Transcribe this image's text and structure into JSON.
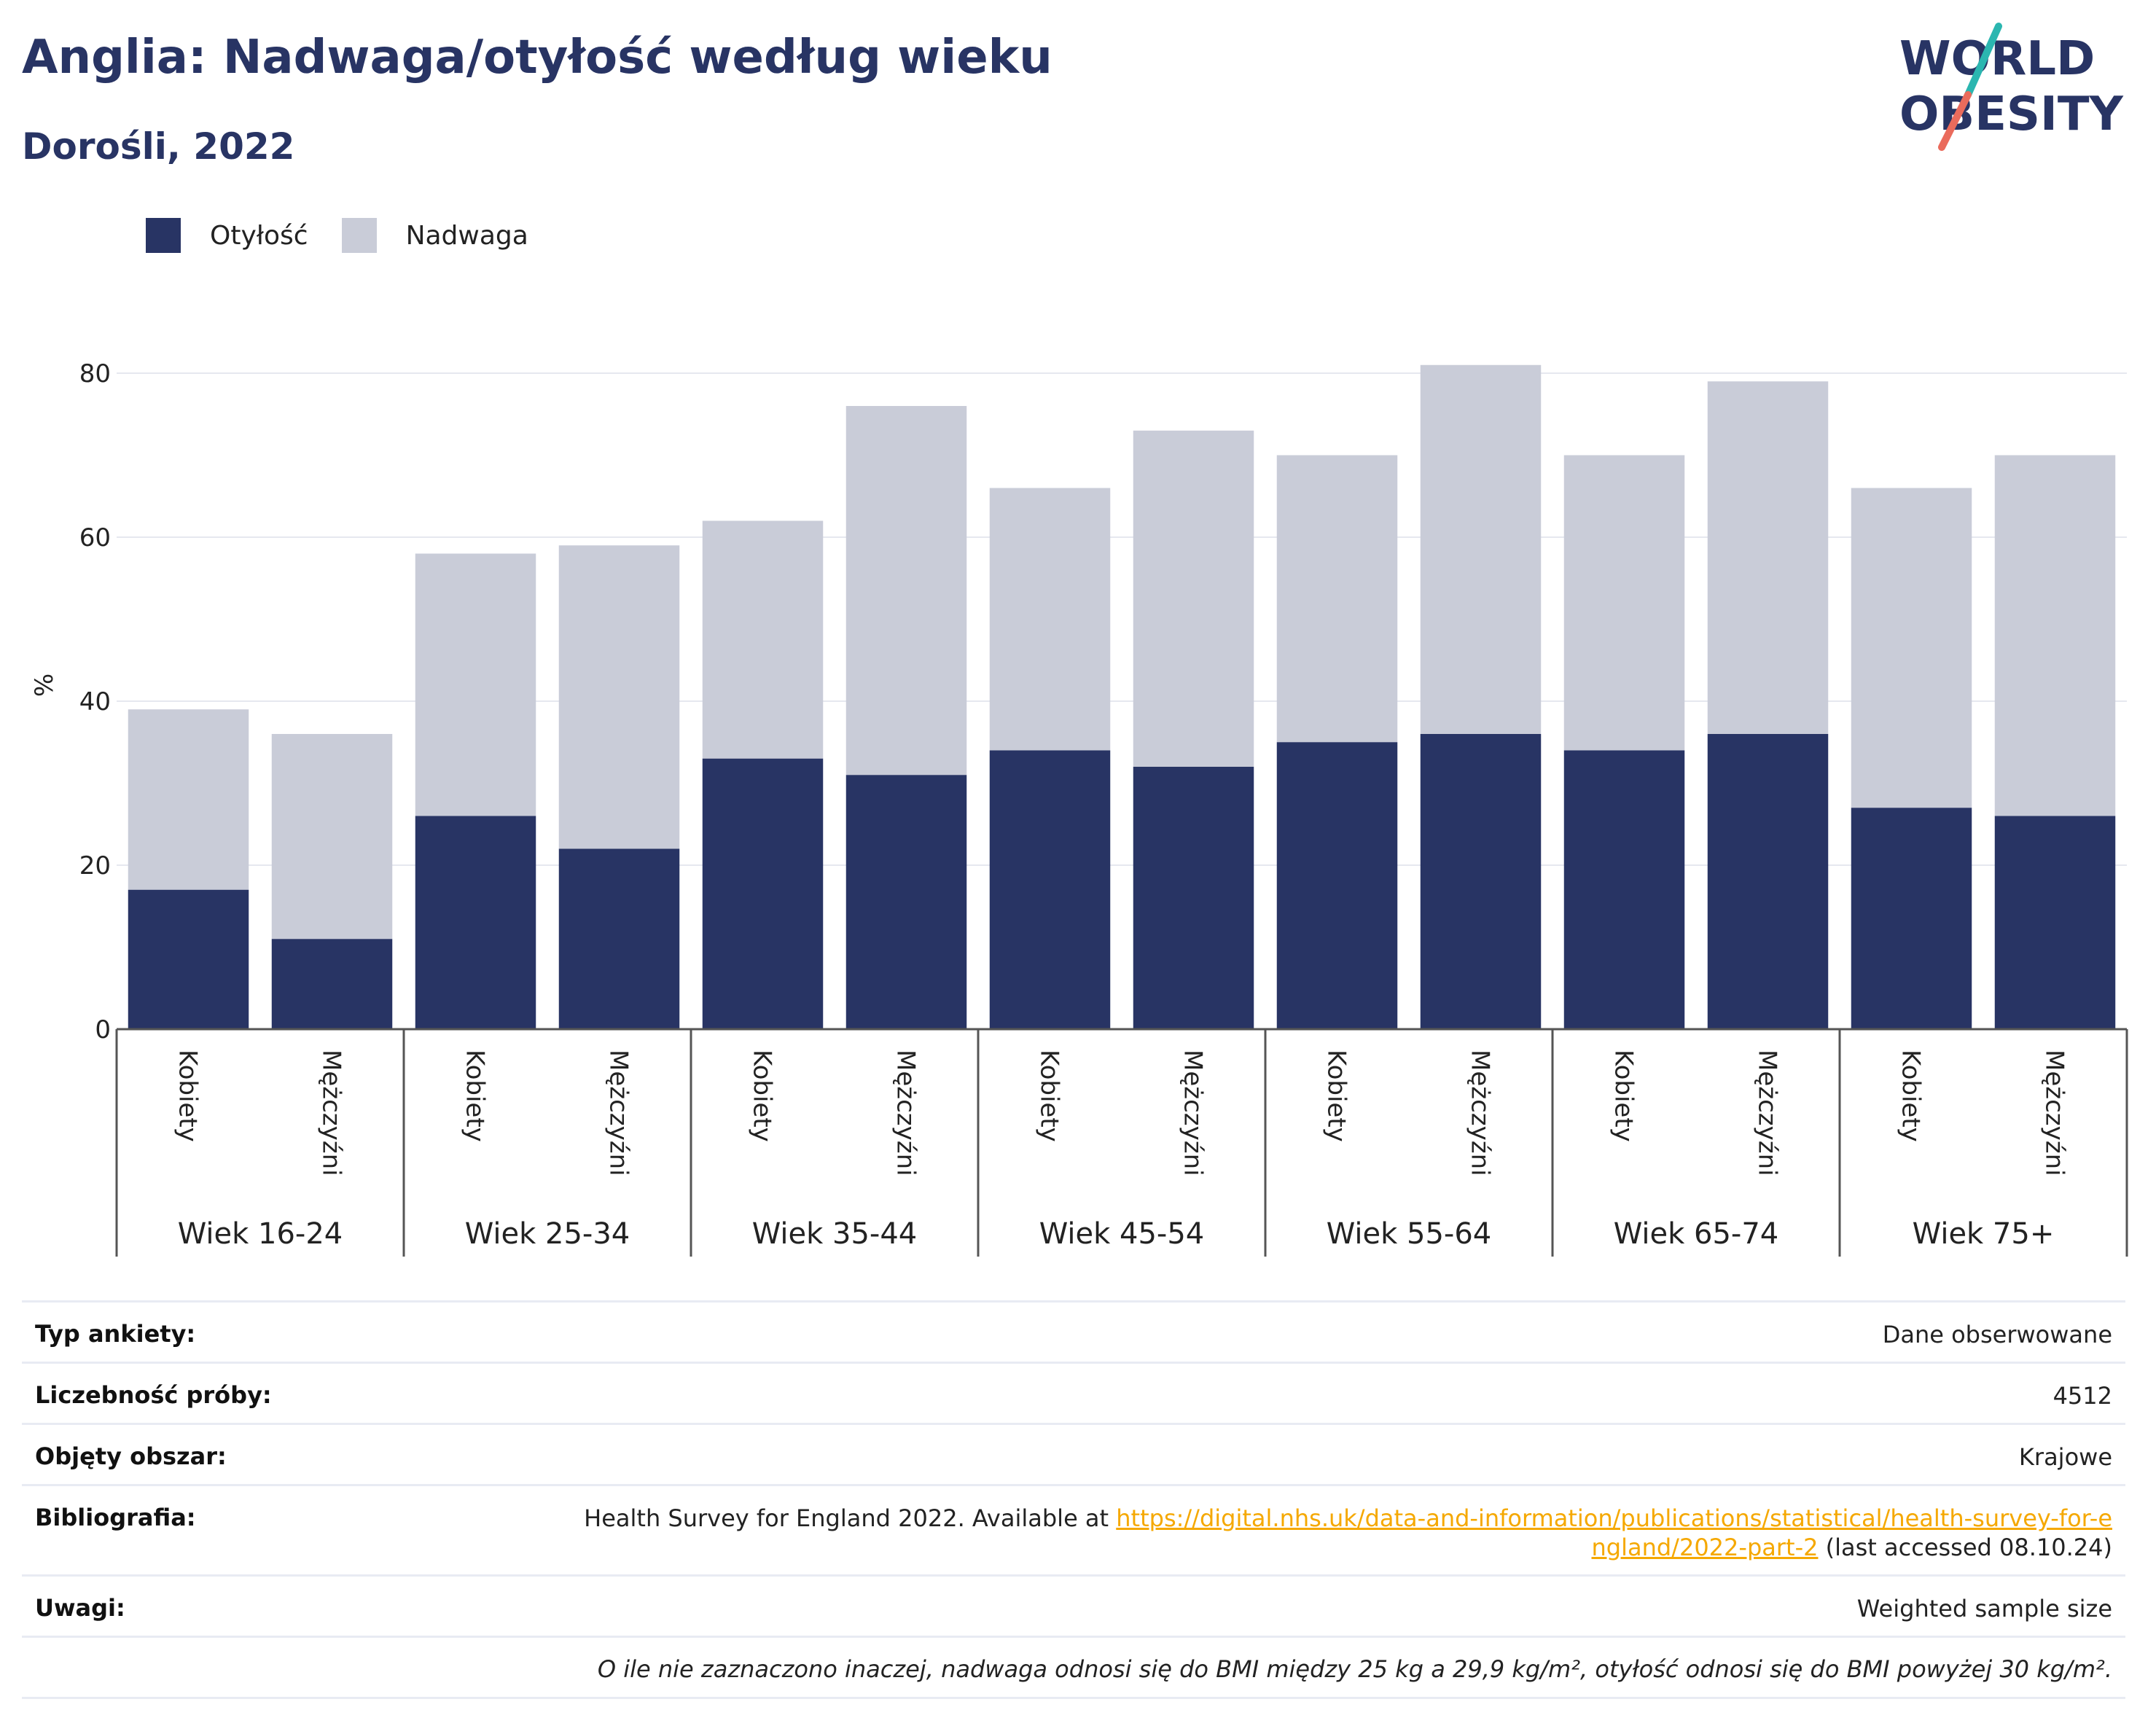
{
  "header": {
    "title": "Anglia: Nadwaga/otyłość według wieku",
    "subtitle": "Dorośli, 2022"
  },
  "logo": {
    "line1": "WORLD",
    "line2": "OBESITY",
    "colors": {
      "text": "#283464",
      "slash_top": "#2bb6b0",
      "slash_bottom": "#ea6b5c"
    }
  },
  "legend": [
    {
      "name": "Otyłość",
      "color": "#283464"
    },
    {
      "name": "Nadwaga",
      "color": "#c9ccd8"
    }
  ],
  "chart_data": {
    "type": "bar",
    "stacked": true,
    "ylabel": "%",
    "ylim": [
      0,
      80
    ],
    "yticks": [
      0,
      20,
      40,
      60,
      80
    ],
    "grid": true,
    "legend_position": "top-left",
    "groups": [
      "Wiek 16-24",
      "Wiek 25-34",
      "Wiek 35-44",
      "Wiek 45-54",
      "Wiek 55-64",
      "Wiek 65-74",
      "Wiek 75+"
    ],
    "categories": [
      "Kobiety",
      "Mężczyźni",
      "Kobiety",
      "Mężczyźni",
      "Kobiety",
      "Mężczyźni",
      "Kobiety",
      "Mężczyźni",
      "Kobiety",
      "Mężczyźni",
      "Kobiety",
      "Mężczyźni",
      "Kobiety",
      "Mężczyźni"
    ],
    "series": [
      {
        "name": "Otyłość",
        "color": "#283464",
        "values": [
          17,
          11,
          26,
          22,
          33,
          31,
          34,
          32,
          35,
          36,
          34,
          36,
          27,
          26
        ]
      },
      {
        "name": "Nadwaga",
        "color": "#c9ccd8",
        "values": [
          22,
          25,
          32,
          37,
          29,
          45,
          32,
          41,
          35,
          45,
          36,
          43,
          39,
          44
        ]
      }
    ]
  },
  "meta": {
    "survey_type": {
      "label": "Typ ankiety:",
      "value": "Dane obserwowane"
    },
    "sample_size": {
      "label": "Liczebność próby:",
      "value": "4512"
    },
    "area": {
      "label": "Objęty obszar:",
      "value": "Krajowe"
    },
    "bibliography": {
      "label": "Bibliografia:",
      "text_before": "Health Survey for England 2022. Available at ",
      "link": "https://digital.nhs.uk/data-and-information/publications/statistical/health-survey-for-england/2022-part-2",
      "text_after": " (last accessed 08.10.24)"
    },
    "notes": {
      "label": "Uwagi:",
      "value": "Weighted sample size"
    },
    "footnote": "O ile nie zaznaczono inaczej, nadwaga odnosi się do BMI między 25 kg a 29,9 kg/m², otyłość odnosi się do BMI powyżej 30 kg/m²."
  }
}
